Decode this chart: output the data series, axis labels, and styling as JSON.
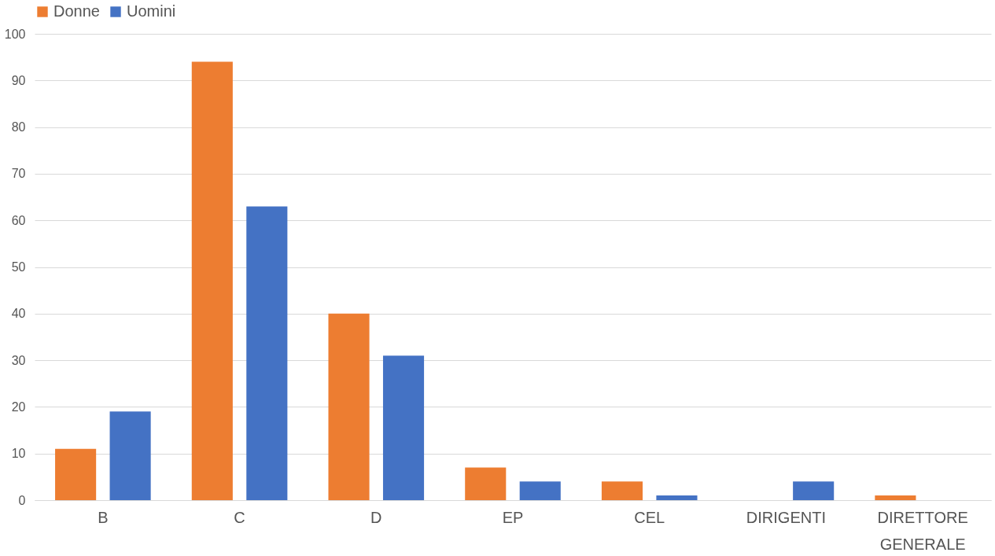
{
  "chart_data": {
    "type": "bar",
    "categories": [
      "B",
      "C",
      "D",
      "EP",
      "CEL",
      "DIRIGENTI",
      "DIRETTORE GENERALE"
    ],
    "series": [
      {
        "name": "Donne",
        "color": "#ed7d31",
        "values": [
          11,
          94,
          40,
          7,
          4,
          null,
          1
        ]
      },
      {
        "name": "Uomini",
        "color": "#4472c4",
        "values": [
          19,
          63,
          31,
          4,
          1,
          4,
          null
        ]
      }
    ],
    "ylim": [
      0,
      100
    ],
    "yticks": [
      0,
      10,
      20,
      30,
      40,
      50,
      60,
      70,
      80,
      90,
      100
    ],
    "grid": "y",
    "legend": "top"
  }
}
